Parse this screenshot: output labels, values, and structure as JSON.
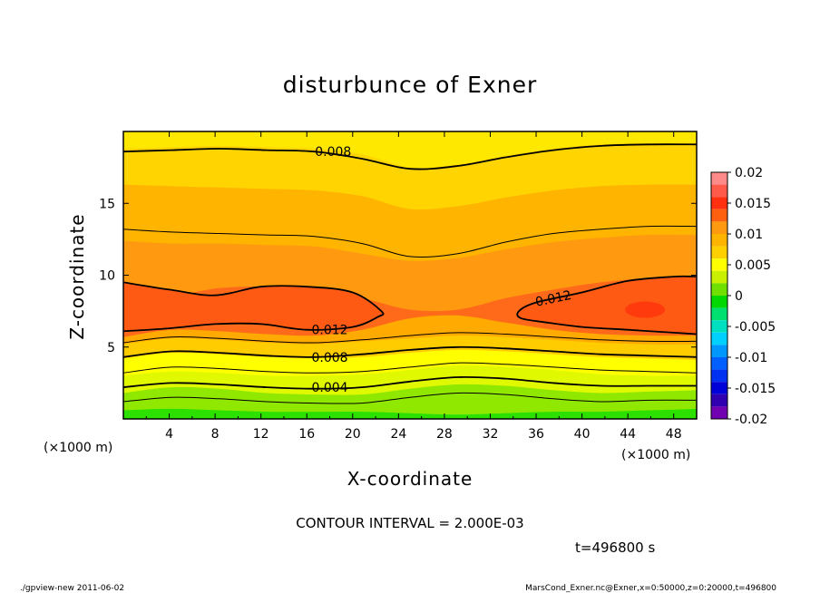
{
  "chart_data": {
    "type": "heatmap",
    "title": "disturbunce of Exner",
    "xlabel": "X-coordinate",
    "ylabel": "Z-coordinate",
    "xlim": [
      0,
      50
    ],
    "ylim": [
      0,
      20
    ],
    "x_unit": "(×1000 m)",
    "y_unit": "(×1000 m)",
    "x_ticks": [
      4,
      8,
      12,
      16,
      20,
      24,
      28,
      32,
      36,
      40,
      44,
      48
    ],
    "y_ticks": [
      5,
      10,
      15
    ],
    "colorbar": {
      "ticks": [
        "0.02",
        "0.015",
        "0.01",
        "0.005",
        "0",
        "-0.005",
        "-0.01",
        "-0.015",
        "-0.02"
      ],
      "range": [
        -0.02,
        0.02
      ],
      "levels": [
        {
          "lo": 0.018,
          "hi": 0.02,
          "color": "#ff8a8a"
        },
        {
          "lo": 0.016,
          "hi": 0.018,
          "color": "#ff5a4a"
        },
        {
          "lo": 0.014,
          "hi": 0.016,
          "color": "#ff3010"
        },
        {
          "lo": 0.012,
          "hi": 0.014,
          "color": "#ff6010"
        },
        {
          "lo": 0.01,
          "hi": 0.012,
          "color": "#ff9a10"
        },
        {
          "lo": 0.008,
          "hi": 0.01,
          "color": "#ffb400"
        },
        {
          "lo": 0.006,
          "hi": 0.008,
          "color": "#ffd000"
        },
        {
          "lo": 0.004,
          "hi": 0.006,
          "color": "#ffff00"
        },
        {
          "lo": 0.002,
          "hi": 0.004,
          "color": "#c8f000"
        },
        {
          "lo": 0.0,
          "hi": 0.002,
          "color": "#70e000"
        },
        {
          "lo": -0.002,
          "hi": 0.0,
          "color": "#00d800"
        },
        {
          "lo": -0.004,
          "hi": -0.002,
          "color": "#00e070"
        },
        {
          "lo": -0.006,
          "hi": -0.004,
          "color": "#00e0c0"
        },
        {
          "lo": -0.008,
          "hi": -0.006,
          "color": "#00d0ff"
        },
        {
          "lo": -0.01,
          "hi": -0.008,
          "color": "#0098ff"
        },
        {
          "lo": -0.012,
          "hi": -0.01,
          "color": "#0060ff"
        },
        {
          "lo": -0.014,
          "hi": -0.012,
          "color": "#0030f0"
        },
        {
          "lo": -0.016,
          "hi": -0.014,
          "color": "#0000d8"
        },
        {
          "lo": -0.018,
          "hi": -0.016,
          "color": "#3000b0"
        },
        {
          "lo": -0.02,
          "hi": -0.018,
          "color": "#7000b0"
        }
      ]
    },
    "bands": [
      {
        "lo": 0.0,
        "hi": 0.002,
        "color": "#2ce000",
        "z": [
          0.6,
          0.7,
          0.6,
          0.5,
          0.5,
          0.5,
          0.4,
          0.3,
          0.4,
          0.5,
          0.5,
          0.6,
          0.7
        ]
      },
      {
        "lo": 0.002,
        "hi": 0.004,
        "color": "#90e800",
        "z": [
          1.8,
          2.2,
          2.1,
          1.8,
          1.7,
          1.7,
          2.1,
          2.4,
          2.3,
          2.0,
          1.8,
          1.9,
          2.0
        ]
      },
      {
        "lo": 0.004,
        "hi": 0.006,
        "color": "#e0f800",
        "z": [
          3.0,
          3.3,
          3.2,
          3.0,
          3.0,
          3.1,
          3.4,
          3.7,
          3.6,
          3.4,
          3.1,
          3.0,
          3.0
        ]
      },
      {
        "lo": 0.006,
        "hi": 0.008,
        "color": "#ffff00",
        "z": [
          4.2,
          4.6,
          4.5,
          4.3,
          4.2,
          4.3,
          4.6,
          4.8,
          4.7,
          4.5,
          4.3,
          4.2,
          4.1
        ]
      },
      {
        "lo": 0.008,
        "hi": 0.01,
        "color": "#ffcc00",
        "z": [
          5.2,
          5.6,
          5.5,
          5.3,
          5.2,
          5.4,
          5.6,
          5.8,
          5.7,
          5.5,
          5.3,
          5.2,
          5.2
        ]
      },
      {
        "lo": 0.01,
        "hi": 0.012,
        "color": "#ffaa00",
        "z": [
          5.7,
          6.2,
          6.1,
          5.9,
          5.8,
          6.2,
          7.0,
          7.2,
          6.7,
          6.2,
          5.9,
          5.8,
          5.8
        ]
      },
      {
        "lo": 0.012,
        "hi": 0.014,
        "color": "#ff6a1a",
        "z": [
          9.0,
          8.6,
          9.1,
          9.2,
          8.9,
          8.4,
          7.6,
          7.6,
          8.4,
          9.0,
          9.5,
          9.8,
          9.8
        ]
      },
      {
        "lo": 0.01,
        "hi": 0.012,
        "color": "#ff9a10",
        "z": [
          12.4,
          12.2,
          12.2,
          12.1,
          12.0,
          11.5,
          11.0,
          11.2,
          11.8,
          12.3,
          12.6,
          12.8,
          12.8
        ]
      },
      {
        "lo": 0.008,
        "hi": 0.01,
        "color": "#ffb400",
        "z": [
          16.3,
          16.2,
          16.1,
          16.0,
          15.9,
          15.5,
          14.6,
          14.8,
          15.4,
          15.9,
          16.2,
          16.3,
          16.3
        ]
      },
      {
        "lo": 0.006,
        "hi": 0.008,
        "color": "#ffd400",
        "z": [
          18.8,
          18.9,
          19.0,
          18.9,
          18.8,
          18.4,
          17.5,
          17.7,
          18.3,
          18.8,
          19.1,
          19.2,
          19.2
        ]
      },
      {
        "lo": 0.004,
        "hi": 0.006,
        "color": "#ffe800",
        "z": [
          20,
          20,
          20,
          20,
          20,
          20,
          20,
          20,
          20,
          20,
          20,
          20,
          20
        ]
      }
    ],
    "contours": [
      {
        "value": 0.002,
        "z": [
          1.2,
          1.5,
          1.4,
          1.2,
          1.1,
          1.1,
          1.5,
          1.8,
          1.7,
          1.4,
          1.2,
          1.3,
          1.3
        ]
      },
      {
        "value": 0.004,
        "z": [
          2.2,
          2.5,
          2.4,
          2.2,
          2.1,
          2.2,
          2.6,
          2.9,
          2.8,
          2.5,
          2.3,
          2.3,
          2.3
        ]
      },
      {
        "value": 0.006,
        "z": [
          3.2,
          3.6,
          3.5,
          3.3,
          3.2,
          3.3,
          3.6,
          3.9,
          3.8,
          3.6,
          3.4,
          3.3,
          3.2
        ]
      },
      {
        "value": 0.008,
        "z": [
          4.3,
          4.7,
          4.6,
          4.4,
          4.3,
          4.5,
          4.8,
          5.0,
          4.9,
          4.7,
          4.5,
          4.4,
          4.3
        ]
      },
      {
        "value": 0.01,
        "z": [
          5.3,
          5.7,
          5.6,
          5.4,
          5.3,
          5.5,
          5.8,
          6.0,
          5.9,
          5.7,
          5.5,
          5.4,
          5.4
        ]
      },
      {
        "value": 0.01,
        "z": [
          13.2,
          13.0,
          12.9,
          12.8,
          12.7,
          12.2,
          11.3,
          11.5,
          12.3,
          12.9,
          13.2,
          13.4,
          13.4
        ]
      },
      {
        "value": 0.008,
        "z": [
          18.6,
          18.7,
          18.8,
          18.7,
          18.6,
          18.1,
          17.4,
          17.6,
          18.2,
          18.7,
          19.0,
          19.1,
          19.1
        ]
      }
    ],
    "closed_contours": [
      {
        "value": 0.012,
        "x": [
          0,
          4,
          8,
          12,
          16,
          20,
          22.5,
          22.2,
          20,
          16,
          12,
          8,
          4,
          0
        ],
        "z": [
          9.5,
          9.0,
          8.6,
          9.2,
          9.2,
          8.8,
          7.5,
          7.1,
          6.4,
          6.2,
          6.6,
          6.6,
          6.3,
          6.1
        ]
      },
      {
        "value": 0.012,
        "x": [
          50,
          48,
          44,
          40,
          36,
          34.5,
          34.7,
          37,
          40,
          44,
          48,
          50
        ],
        "z": [
          9.9,
          9.9,
          9.6,
          8.8,
          8.1,
          7.5,
          7.0,
          6.7,
          6.4,
          6.2,
          6.0,
          5.9
        ]
      }
    ],
    "contour_labels": [
      {
        "text": "0.008",
        "x": 18.3,
        "z": 18.6
      },
      {
        "text": "0.012",
        "x": 18,
        "z": 6.2
      },
      {
        "text": "0.008",
        "x": 18,
        "z": 4.3
      },
      {
        "text": "0.004",
        "x": 18,
        "z": 2.2
      },
      {
        "text": "0.012",
        "x": 37.5,
        "z": 8.4
      }
    ]
  },
  "annotations": {
    "contour_interval": "CONTOUR INTERVAL = 2.000E-03",
    "time": "t=496800 s"
  },
  "footer": {
    "left": "./gpview-new   2011-06-02",
    "right": "MarsCond_Exner.nc@Exner,x=0:50000,z=0:20000,t=496800"
  }
}
